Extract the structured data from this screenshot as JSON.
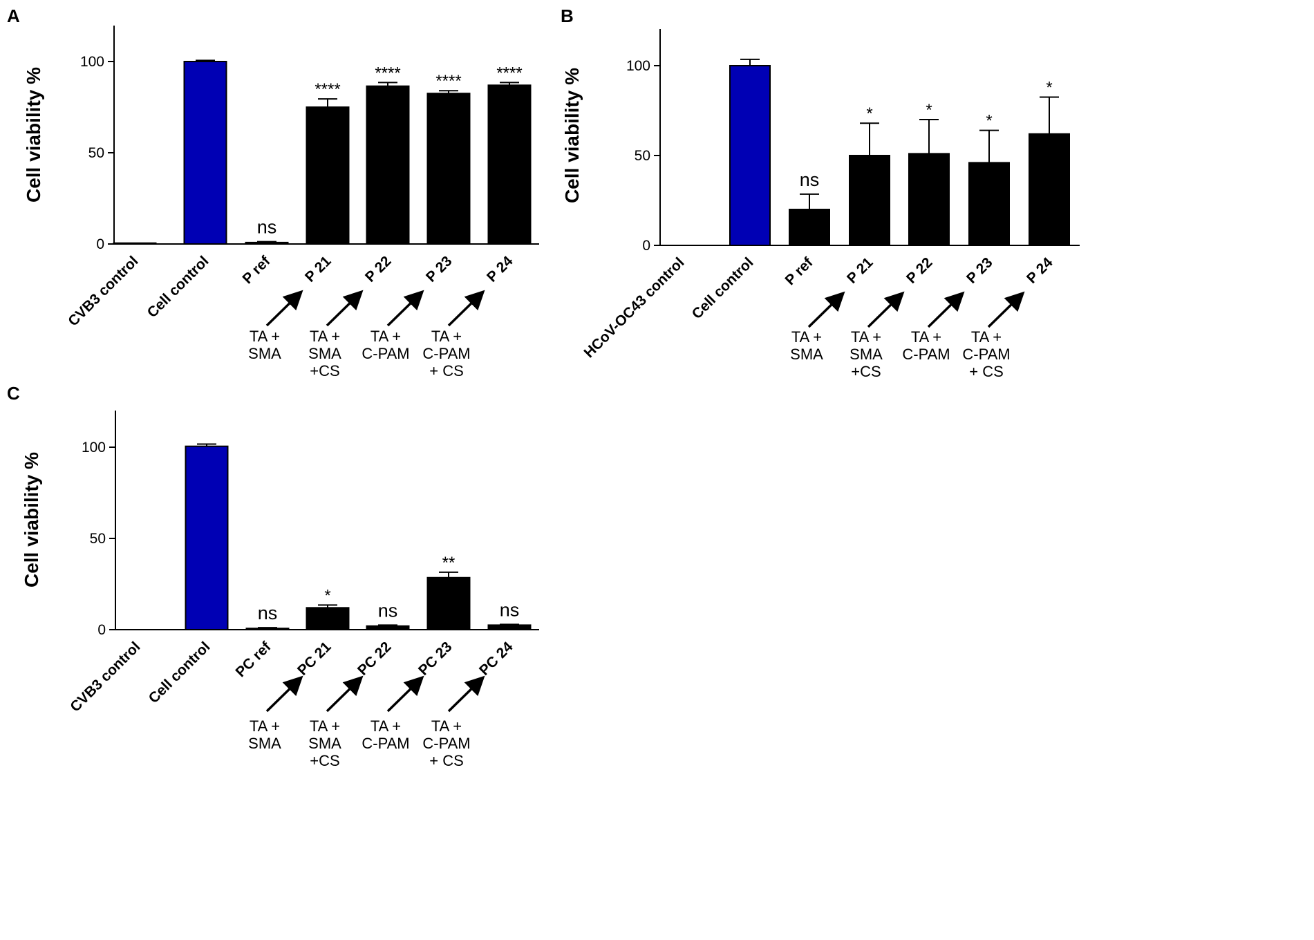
{
  "colors": {
    "bar": "#000000",
    "highlight": "#0000b4",
    "axis": "#000000"
  },
  "chart_data": [
    {
      "panel": "A",
      "type": "bar",
      "ylabel": "Cell viability %",
      "ylim": [
        0,
        120
      ],
      "yticks": [
        0,
        50,
        100
      ],
      "categories": [
        "CVB3 control",
        "Cell control",
        "P ref",
        "P 21",
        "P 22",
        "P 23",
        "P 24"
      ],
      "values": [
        0.5,
        100,
        0.8,
        75,
        86.5,
        82.5,
        87
      ],
      "errors": [
        0,
        0.6,
        0.5,
        4.5,
        2,
        1.5,
        1.5
      ],
      "significance": [
        "",
        "",
        "ns",
        "****",
        "****",
        "****",
        "****"
      ],
      "annotations": [
        {
          "target": "P 21",
          "lines": [
            "TA +",
            "SMA"
          ]
        },
        {
          "target": "P 22",
          "lines": [
            "TA +",
            "SMA",
            "+CS"
          ]
        },
        {
          "target": "P 23",
          "lines": [
            "TA +",
            "C-PAM"
          ]
        },
        {
          "target": "P 24",
          "lines": [
            "TA +",
            "C-PAM",
            "+ CS"
          ]
        }
      ]
    },
    {
      "panel": "B",
      "type": "bar",
      "ylabel": "Cell viability %",
      "ylim": [
        0,
        120
      ],
      "yticks": [
        0,
        50,
        100
      ],
      "categories": [
        "HCoV-OC43 control",
        "Cell control",
        "P ref",
        "P 21",
        "P 22",
        "P 23",
        "P 24"
      ],
      "values": [
        0,
        100,
        20,
        50,
        51,
        46,
        62
      ],
      "errors": [
        0,
        3.5,
        8.5,
        18,
        19,
        18,
        20.5
      ],
      "significance": [
        "",
        "",
        "ns",
        "*",
        "*",
        "*",
        "*"
      ],
      "annotations": [
        {
          "target": "P 21",
          "lines": [
            "TA +",
            "SMA"
          ]
        },
        {
          "target": "P 22",
          "lines": [
            "TA +",
            "SMA",
            "+CS"
          ]
        },
        {
          "target": "P 23",
          "lines": [
            "TA +",
            "C-PAM"
          ]
        },
        {
          "target": "P 24",
          "lines": [
            "TA +",
            "C-PAM",
            "+ CS"
          ]
        }
      ]
    },
    {
      "panel": "C",
      "type": "bar",
      "ylabel": "Cell viability %",
      "ylim": [
        0,
        120
      ],
      "yticks": [
        0,
        50,
        100
      ],
      "categories": [
        "CVB3 control",
        "Cell control",
        "PC ref",
        "PC 21",
        "PC 22",
        "PC 23",
        "PC 24"
      ],
      "values": [
        0,
        100.5,
        0.7,
        12,
        2,
        28.5,
        2.5
      ],
      "errors": [
        0,
        1.2,
        0.4,
        1.5,
        0.5,
        3,
        0.4
      ],
      "significance": [
        "",
        "",
        "ns",
        "*",
        "ns",
        "**",
        "ns"
      ],
      "annotations": [
        {
          "target": "PC 21",
          "lines": [
            "TA +",
            "SMA"
          ]
        },
        {
          "target": "PC 22",
          "lines": [
            "TA +",
            "SMA",
            "+CS"
          ]
        },
        {
          "target": "PC 23",
          "lines": [
            "TA +",
            "C-PAM"
          ]
        },
        {
          "target": "PC 24",
          "lines": [
            "TA +",
            "C-PAM",
            "+ CS"
          ]
        }
      ]
    }
  ]
}
